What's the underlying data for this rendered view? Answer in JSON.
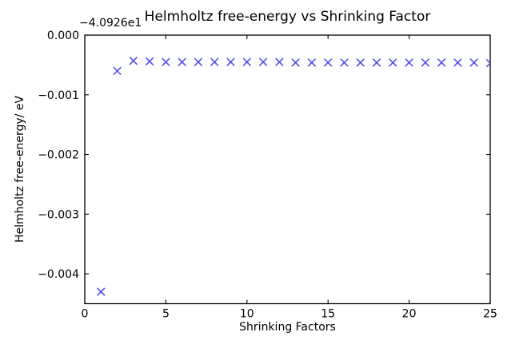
{
  "chart_data": {
    "type": "scatter",
    "title": "Helmholtz free-energy vs Shrinking Factor",
    "xlabel": "Shrinking Factors",
    "ylabel": "Helmholtz free-energy/ eV",
    "offset_label": "−4.0926e1",
    "marker": "x",
    "marker_color": "#4848e8",
    "axis_color": "#000000",
    "background_color": "#ffffff",
    "grid": false,
    "legend": null,
    "xlim": [
      0,
      25
    ],
    "ylim": [
      -0.0045,
      0
    ],
    "xticks": {
      "values": [
        0,
        5,
        10,
        15,
        20,
        25
      ],
      "labels": [
        "0",
        "5",
        "10",
        "15",
        "20",
        "25"
      ]
    },
    "yticks": {
      "values": [
        0,
        -0.001,
        -0.002,
        -0.003,
        -0.004
      ],
      "labels": [
        "0.000",
        "−0.001",
        "−0.002",
        "−0.003",
        "−0.004"
      ]
    },
    "x": [
      1,
      2,
      3,
      4,
      5,
      6,
      7,
      8,
      9,
      10,
      11,
      12,
      13,
      14,
      15,
      16,
      17,
      18,
      19,
      20,
      21,
      22,
      23,
      24,
      25
    ],
    "y": [
      -0.0043,
      -0.0006,
      -0.00043,
      -0.00044,
      -0.00045,
      -0.00045,
      -0.00045,
      -0.00045,
      -0.00045,
      -0.00045,
      -0.00045,
      -0.00045,
      -0.00046,
      -0.00046,
      -0.00046,
      -0.00046,
      -0.00046,
      -0.00046,
      -0.00046,
      -0.00046,
      -0.00046,
      -0.00046,
      -0.00046,
      -0.00046,
      -0.00047
    ]
  }
}
